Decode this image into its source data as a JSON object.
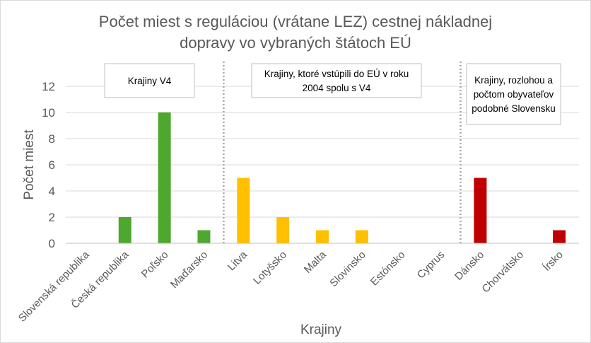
{
  "chart_data": {
    "type": "bar",
    "title_lines": [
      "Počet miest s reguláciou (vrátane LEZ) cestnej nákladnej",
      "dopravy vo vybraných štátoch EÚ"
    ],
    "xlabel": "Krajiny",
    "ylabel": "Počet miest",
    "ylim": [
      0,
      12
    ],
    "yticks": [
      0,
      2,
      4,
      6,
      8,
      10,
      12
    ],
    "grid": true,
    "categories": [
      "Slovenská republika",
      "Česká republika",
      "Poľsko",
      "Maďarsko",
      "Litva",
      "Lotyšsko",
      "Malta",
      "Slovinsko",
      "Estónsko",
      "Cyprus",
      "Dánsko",
      "Chorvátsko",
      "Írsko"
    ],
    "values": [
      0,
      2,
      10,
      1,
      5,
      2,
      1,
      1,
      0,
      0,
      5,
      0,
      1
    ],
    "groups": [
      {
        "label_lines": [
          "Krajiny V4"
        ],
        "start": 0,
        "end": 3,
        "color": "#4ea72e"
      },
      {
        "label_lines": [
          "Krajiny, ktoré vstúpili do EÚ v roku",
          "2004 spolu s V4"
        ],
        "start": 4,
        "end": 9,
        "color": "#ffc000"
      },
      {
        "label_lines": [
          "Krajiny, rozlohou a",
          "počtom obyvateľov",
          "podobné Slovensku"
        ],
        "start": 10,
        "end": 12,
        "color": "#c00000"
      }
    ]
  }
}
